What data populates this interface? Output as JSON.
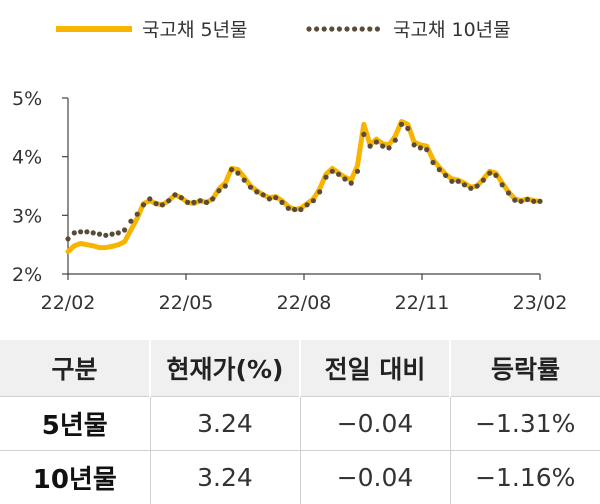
{
  "chart_data": {
    "type": "line",
    "x_ticks": [
      "22/02",
      "22/05",
      "22/08",
      "22/11",
      "23/02"
    ],
    "y_ticks": [
      "5%",
      "4%",
      "3%",
      "2%"
    ],
    "ylim": [
      2,
      5
    ],
    "legend_placement": "top",
    "series": [
      {
        "name": "국고채 5년물",
        "color": "#f7b500",
        "style": "solid",
        "values": [
          2.38,
          2.48,
          2.52,
          2.5,
          2.48,
          2.45,
          2.45,
          2.47,
          2.5,
          2.55,
          2.75,
          2.95,
          3.2,
          3.25,
          3.2,
          3.18,
          3.25,
          3.35,
          3.3,
          3.22,
          3.2,
          3.25,
          3.22,
          3.28,
          3.45,
          3.55,
          3.8,
          3.78,
          3.65,
          3.5,
          3.42,
          3.35,
          3.3,
          3.32,
          3.25,
          3.15,
          3.1,
          3.12,
          3.2,
          3.28,
          3.45,
          3.7,
          3.8,
          3.72,
          3.65,
          3.6,
          3.85,
          4.55,
          4.2,
          4.3,
          4.22,
          4.2,
          4.35,
          4.6,
          4.55,
          4.25,
          4.2,
          4.18,
          3.95,
          3.82,
          3.7,
          3.62,
          3.6,
          3.55,
          3.48,
          3.5,
          3.62,
          3.75,
          3.72,
          3.55,
          3.4,
          3.28,
          3.25,
          3.28,
          3.25,
          3.24
        ]
      },
      {
        "name": "국고채 10년물",
        "color": "#5a4a3a",
        "style": "dotted",
        "values": [
          2.6,
          2.7,
          2.72,
          2.72,
          2.7,
          2.68,
          2.66,
          2.68,
          2.7,
          2.75,
          2.9,
          3.02,
          3.18,
          3.28,
          3.2,
          3.18,
          3.25,
          3.35,
          3.3,
          3.22,
          3.22,
          3.25,
          3.22,
          3.28,
          3.42,
          3.5,
          3.78,
          3.72,
          3.6,
          3.48,
          3.4,
          3.35,
          3.28,
          3.3,
          3.22,
          3.12,
          3.1,
          3.1,
          3.18,
          3.25,
          3.4,
          3.65,
          3.75,
          3.7,
          3.62,
          3.55,
          3.75,
          4.38,
          4.18,
          4.25,
          4.18,
          4.15,
          4.28,
          4.55,
          4.48,
          4.2,
          4.15,
          4.12,
          3.9,
          3.78,
          3.68,
          3.58,
          3.58,
          3.52,
          3.46,
          3.5,
          3.6,
          3.72,
          3.68,
          3.52,
          3.38,
          3.26,
          3.24,
          3.27,
          3.24,
          3.24
        ]
      }
    ]
  },
  "table": {
    "headers": [
      "구분",
      "현재가(%)",
      "전일 대비",
      "등락률"
    ],
    "rows": [
      [
        "5년물",
        "3.24",
        "−0.04",
        "−1.31%"
      ],
      [
        "10년물",
        "3.24",
        "−0.04",
        "−1.16%"
      ]
    ]
  }
}
